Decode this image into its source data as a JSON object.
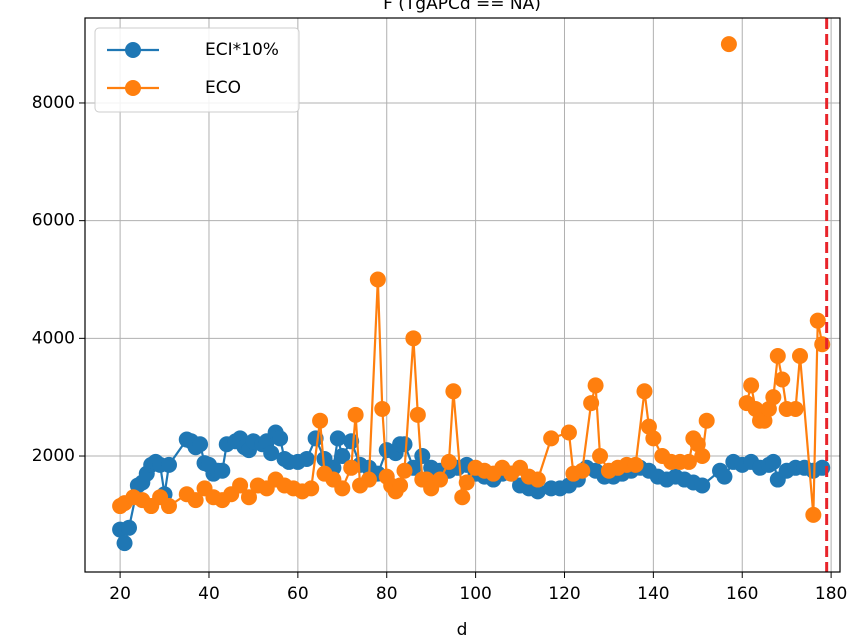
{
  "chart_data": {
    "type": "line",
    "title": "F (TgAPCd == NA)",
    "xlabel": "d",
    "xlim": [
      12.1,
      182
    ],
    "ylim": [
      29,
      9444
    ],
    "xticks": [
      20,
      40,
      60,
      80,
      100,
      120,
      140,
      160,
      180
    ],
    "yticks": [
      2000,
      4000,
      6000,
      8000
    ],
    "grid": true,
    "legend": "upper left",
    "vline": 179,
    "vline_color": "#e8242a",
    "series": [
      {
        "name": "ECI*10%",
        "color": "#1f77b4",
        "x": [
          20,
          21,
          22,
          24,
          25,
          26,
          27,
          28,
          29,
          30,
          31,
          35,
          36,
          37,
          38,
          39,
          40,
          41,
          42,
          43,
          44,
          46,
          47,
          48,
          49,
          50,
          52,
          53,
          54,
          55,
          56,
          57,
          58,
          60,
          62,
          64,
          66,
          68,
          69,
          70,
          72,
          74,
          76,
          78,
          80,
          82,
          83,
          84,
          86,
          88,
          90,
          92,
          94,
          96,
          98,
          100,
          102,
          104,
          106,
          108,
          110,
          112,
          114,
          117,
          119,
          121,
          123,
          125,
          127,
          129,
          131,
          133,
          135,
          137,
          139,
          141,
          143,
          145,
          147,
          149,
          151,
          155,
          156,
          158,
          160,
          162,
          164,
          166,
          167,
          168,
          170,
          172,
          174,
          176,
          178
        ],
        "values": [
          750,
          520,
          780,
          1500,
          1550,
          1700,
          1850,
          1900,
          1850,
          1350,
          1850,
          2280,
          2250,
          2150,
          2200,
          1880,
          1850,
          1700,
          1750,
          1750,
          2200,
          2250,
          2300,
          2150,
          2100,
          2250,
          2200,
          2250,
          2050,
          2400,
          2300,
          1950,
          1900,
          1900,
          1950,
          2300,
          1950,
          1800,
          2300,
          2000,
          2250,
          1850,
          1800,
          1700,
          2100,
          2050,
          2200,
          2200,
          1800,
          2000,
          1800,
          1750,
          1750,
          1800,
          1850,
          1700,
          1650,
          1600,
          1700,
          1700,
          1500,
          1450,
          1400,
          1450,
          1450,
          1500,
          1600,
          1800,
          1750,
          1650,
          1650,
          1700,
          1750,
          1800,
          1750,
          1650,
          1600,
          1650,
          1600,
          1550,
          1500,
          1750,
          1650,
          1900,
          1850,
          1900,
          1800,
          1850,
          1900,
          1600,
          1750,
          1800,
          1800,
          1750,
          1800
        ]
      },
      {
        "name": "ECO",
        "color": "#ff7f0e",
        "x": [
          20,
          21,
          23,
          25,
          27,
          29,
          31,
          35,
          37,
          39,
          41,
          43,
          45,
          47,
          49,
          51,
          53,
          55,
          57,
          59,
          61,
          63,
          65,
          66,
          68,
          70,
          72,
          73,
          74,
          76,
          78,
          79,
          80,
          81,
          82,
          83,
          84,
          86,
          87,
          88,
          89,
          90,
          92,
          94,
          95,
          97,
          98,
          100,
          102,
          104,
          106,
          108,
          110,
          112,
          114,
          117,
          121,
          122,
          124,
          126,
          127,
          128,
          130,
          132,
          134,
          136,
          138,
          139,
          140,
          142,
          144,
          146,
          148,
          149,
          150,
          151,
          152,
          154,
          157,
          159,
          161,
          162,
          163,
          164,
          165,
          166,
          167,
          168,
          169,
          170,
          172,
          173,
          176,
          177,
          178
        ],
        "values": [
          1150,
          1200,
          1300,
          1250,
          1150,
          1300,
          1150,
          1350,
          1250,
          1450,
          1300,
          1250,
          1350,
          1500,
          1300,
          1500,
          1450,
          1600,
          1500,
          1450,
          1400,
          1450,
          2600,
          1700,
          1600,
          1450,
          1800,
          2700,
          1500,
          1600,
          5000,
          2800,
          1650,
          1500,
          1400,
          1500,
          1750,
          4000,
          2700,
          1600,
          1600,
          1450,
          1600,
          1900,
          3100,
          1300,
          1550,
          1800,
          1750,
          1700,
          1800,
          1700,
          1800,
          1650,
          1600,
          2300,
          2400,
          1700,
          1750,
          2900,
          3200,
          2000,
          1750,
          1800,
          1850,
          1850,
          3100,
          2500,
          2300,
          2000,
          1900,
          1900,
          1900,
          2300,
          2200,
          2000,
          2600,
          null,
          9000,
          null,
          2900,
          3200,
          2800,
          2600,
          2600,
          2800,
          3000,
          3700,
          3300,
          2800,
          2800,
          3700,
          1000,
          4300,
          3900
        ]
      }
    ]
  }
}
